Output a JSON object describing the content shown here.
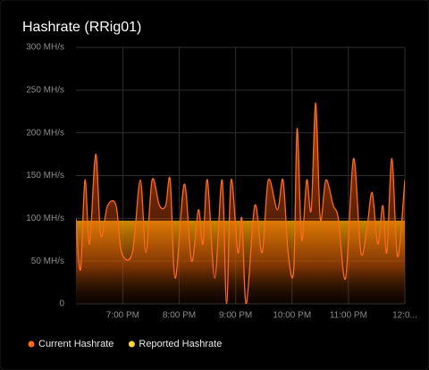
{
  "chart_data": {
    "type": "area",
    "title": "Hashrate (RRig01)",
    "x": [
      18.17,
      18.25,
      18.33,
      18.41,
      18.52,
      18.61,
      18.73,
      18.88,
      18.98,
      19.17,
      19.31,
      19.41,
      19.52,
      19.65,
      19.76,
      19.84,
      19.93,
      20.09,
      20.22,
      20.34,
      20.42,
      20.5,
      20.63,
      20.76,
      20.84,
      20.92,
      21.04,
      21.11,
      21.19,
      21.34,
      21.47,
      21.58,
      21.74,
      21.84,
      21.93,
      22.03,
      22.09,
      22.17,
      22.26,
      22.34,
      22.42,
      22.5,
      22.6,
      22.73,
      22.82,
      22.95,
      23.09,
      23.22,
      23.33,
      23.42,
      23.52,
      23.61,
      23.68,
      23.77,
      23.87,
      24.0
    ],
    "series": [
      {
        "name": "Current Hashrate",
        "color": "#ff6a1a",
        "values": [
          100,
          40,
          145,
          70,
          175,
          80,
          115,
          115,
          60,
          60,
          145,
          60,
          145,
          115,
          115,
          145,
          30,
          140,
          50,
          110,
          70,
          145,
          30,
          145,
          0,
          145,
          60,
          100,
          0,
          115,
          60,
          145,
          110,
          145,
          60,
          40,
          205,
          75,
          145,
          110,
          235,
          100,
          145,
          115,
          100,
          30,
          170,
          60,
          90,
          130,
          70,
          115,
          60,
          170,
          55,
          145
        ]
      },
      {
        "name": "Reported Hashrate",
        "color": "#fdd835",
        "values": [
          97,
          97,
          97,
          97,
          97,
          97,
          97,
          97,
          97,
          97,
          97,
          97,
          97,
          97,
          97,
          97,
          97,
          97,
          97,
          97,
          97,
          97,
          97,
          97,
          97,
          97,
          97,
          97,
          97,
          97,
          97,
          97,
          97,
          97,
          97,
          97,
          97,
          97,
          97,
          97,
          97,
          97,
          97,
          97,
          97,
          97,
          97,
          97,
          97,
          97,
          97,
          97,
          97,
          97,
          97,
          97
        ]
      }
    ],
    "xlim": [
      18.17,
      24
    ],
    "xticks": [
      {
        "value": 19,
        "label": "7:00 PM"
      },
      {
        "value": 20,
        "label": "8:00 PM"
      },
      {
        "value": 21,
        "label": "9:00 PM"
      },
      {
        "value": 22,
        "label": "10:00 PM"
      },
      {
        "value": 23,
        "label": "11:00 PM"
      },
      {
        "value": 24,
        "label": "12:0..."
      }
    ],
    "ylim": [
      0,
      300
    ],
    "yticks": [
      0,
      {
        "value": 50,
        "label": "50 MH/s"
      },
      {
        "value": 100,
        "label": "100 MH/s"
      },
      {
        "value": 150,
        "label": "150 MH/s"
      },
      {
        "value": 200,
        "label": "200 MH/s"
      },
      {
        "value": 250,
        "label": "250 MH/s"
      },
      {
        "value": 300,
        "label": "300 MH/s"
      }
    ],
    "grid": true
  }
}
